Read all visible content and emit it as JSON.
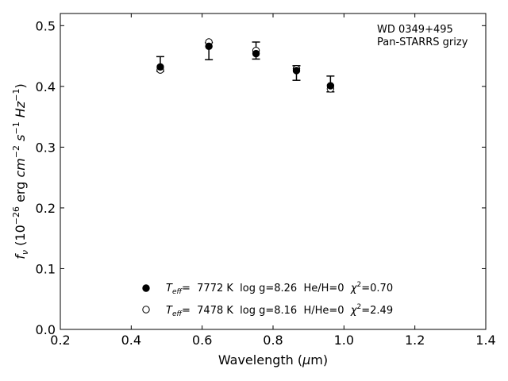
{
  "chart_data": {
    "type": "scatter",
    "xlabel_main": "Wavelength (",
    "xlabel_sym": "μ",
    "xlabel_tail": "m)",
    "ylabel_f": "f",
    "ylabel_nu": "ν",
    "ylabel_a": " (10",
    "ylabel_exp1": "−26",
    "ylabel_b": " erg ",
    "ylabel_cm": "cm",
    "ylabel_exp2": "−2",
    "ylabel_s": "s",
    "ylabel_exp3": "−1",
    "ylabel_hz": "Hz",
    "ylabel_exp4": "−1",
    "ylabel_c": ")",
    "xlim": [
      0.2,
      1.4
    ],
    "ylim": [
      0.0,
      0.52
    ],
    "xticks": [
      0.2,
      0.4,
      0.6,
      0.8,
      1.0,
      1.2,
      1.4
    ],
    "xtick_labels": [
      "0.2",
      "0.4",
      "0.6",
      "0.8",
      "1.0",
      "1.2",
      "1.4"
    ],
    "yticks": [
      0.0,
      0.1,
      0.2,
      0.3,
      0.4,
      0.5
    ],
    "ytick_labels": [
      "0.0",
      "0.1",
      "0.2",
      "0.3",
      "0.4",
      "0.5"
    ],
    "grid": false,
    "annotation": [
      "WD 0349+495",
      "Pan-STARRS grizy"
    ],
    "observed": {
      "x": [
        0.482,
        0.619,
        0.752,
        0.866,
        0.962
      ],
      "y": [
        0.437,
        0.458,
        0.459,
        0.422,
        0.404
      ],
      "yerr": [
        0.012,
        0.014,
        0.014,
        0.012,
        0.013
      ]
    },
    "series": [
      {
        "marker": "filled",
        "x": [
          0.482,
          0.619,
          0.752,
          0.866,
          0.962
        ],
        "y": [
          0.432,
          0.466,
          0.454,
          0.426,
          0.401
        ],
        "legend_teff_T": "T",
        "legend_teff_sub": "eff",
        "legend_rest": "=  7772 K  log g=8.26  He/H=0  ",
        "legend_chi": "χ",
        "legend_chi_exp": "2",
        "legend_chi_val": "=0.70"
      },
      {
        "marker": "open",
        "x": [
          0.482,
          0.619,
          0.752,
          0.866,
          0.962
        ],
        "y": [
          0.427,
          0.473,
          0.459,
          0.429,
          0.396
        ],
        "legend_teff_T": "T",
        "legend_teff_sub": "eff",
        "legend_rest": "=  7478 K  log g=8.16  H/He=0  ",
        "legend_chi": "χ",
        "legend_chi_exp": "2",
        "legend_chi_val": "=2.49"
      }
    ],
    "legend_position": "bottom-center"
  }
}
